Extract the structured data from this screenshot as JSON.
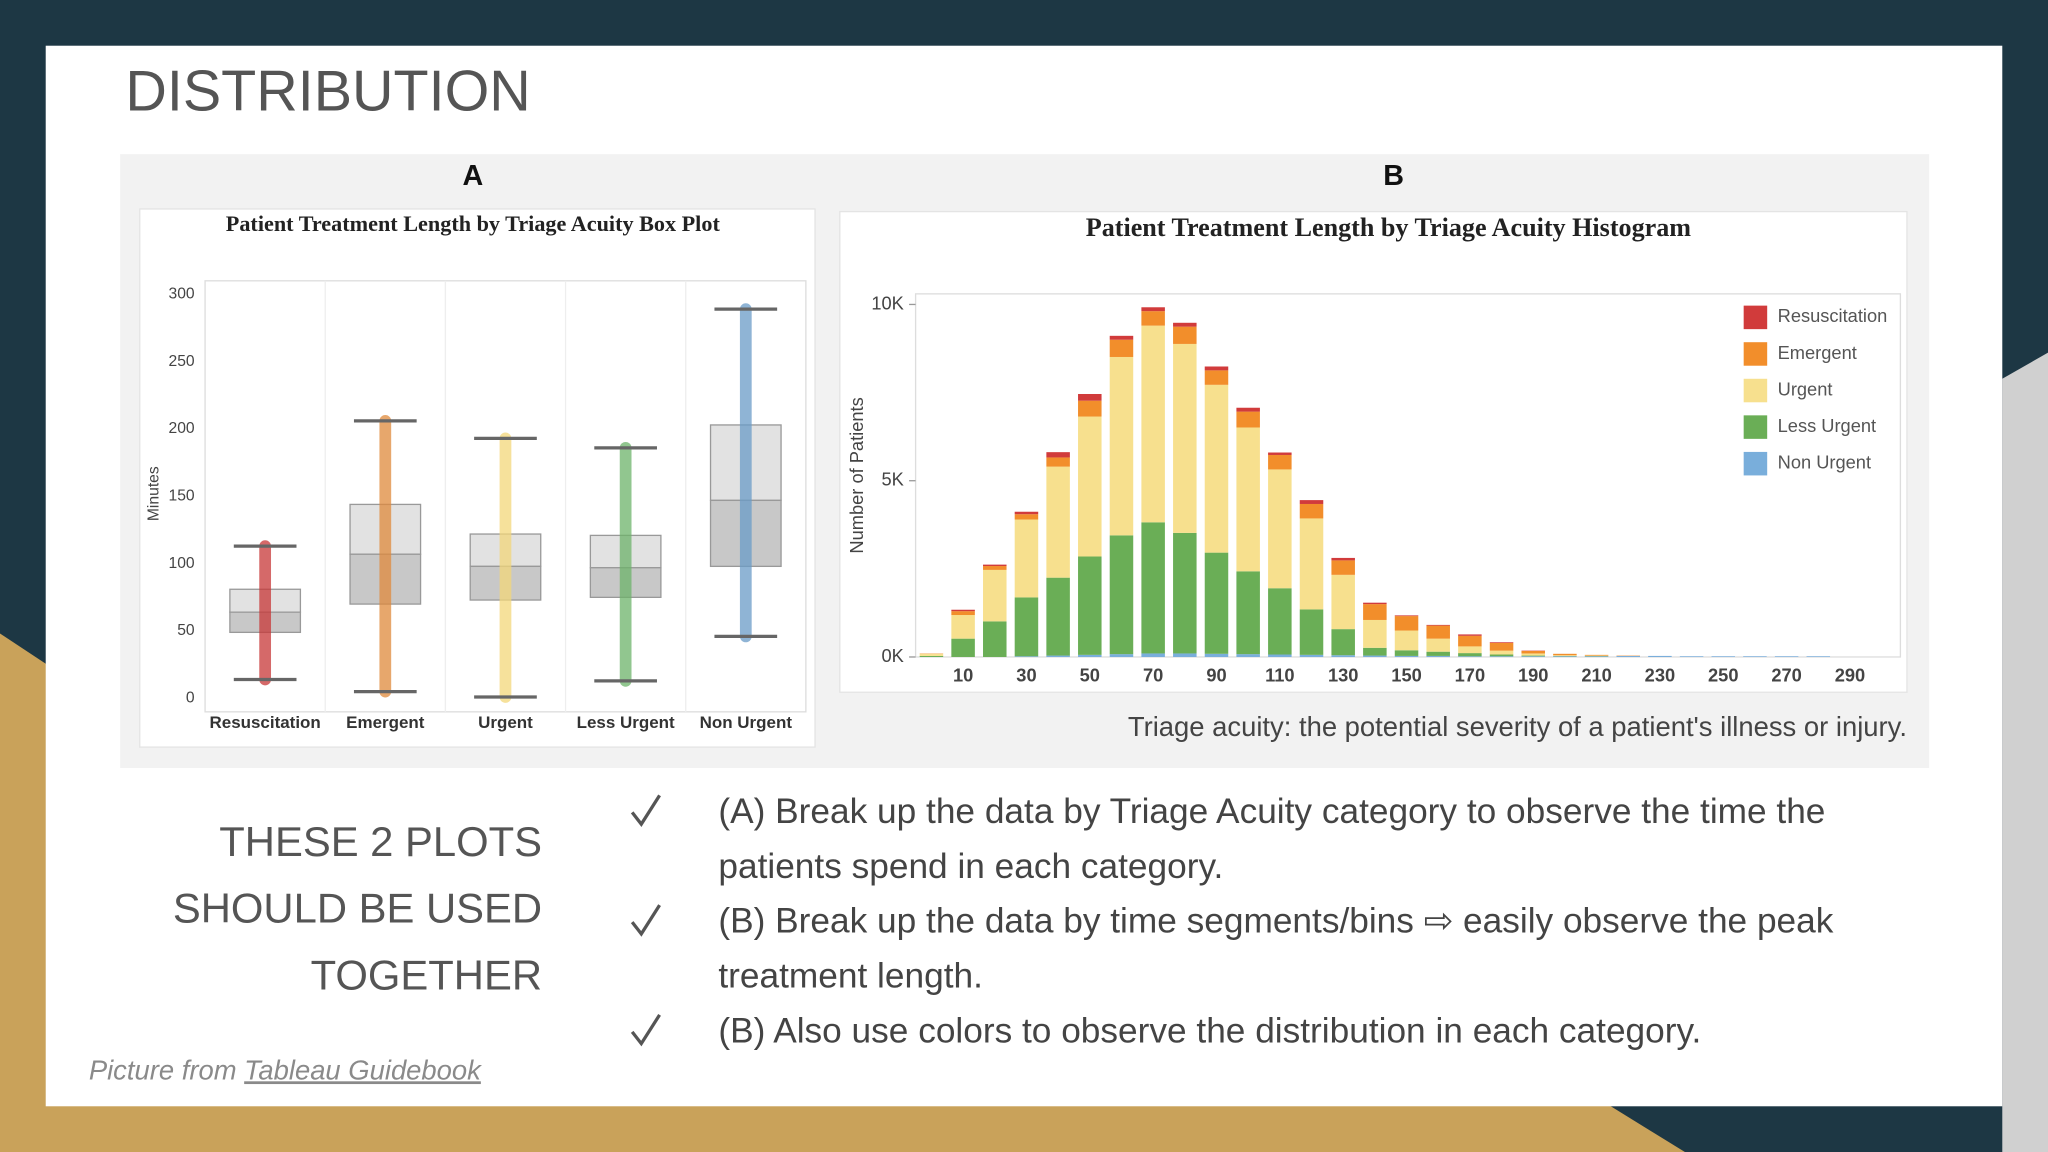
{
  "slide": {
    "title": "DISTRIBUTION",
    "panel_labels": [
      "A",
      "B"
    ],
    "caption": "Triage acuity: the potential severity of a patient's illness or injury.",
    "side_text": [
      "THESE 2 PLOTS",
      "SHOULD BE USED",
      "TOGETHER"
    ],
    "bullets": [
      [
        "(A) Break up the data by Triage Acuity category to observe the time the",
        "patients spend in each category."
      ],
      [
        "(B) Break up the data by time segments/bins ⇨  easily observe the peak",
        "treatment length."
      ],
      [
        "(B) Also use colors to observe the distribution in each category."
      ]
    ],
    "credit": {
      "prefix": "Picture from ",
      "link": "Tableau Guidebook"
    }
  },
  "chart_data": [
    {
      "type": "box",
      "title": "Patient Treatment Length by Triage Acuity Box Plot",
      "y_label": "Minutes",
      "categories": [
        "Resuscitation",
        "Emergent",
        "Urgent",
        "Less Urgent",
        "Non Urgent"
      ],
      "colors": [
        "#c83737",
        "#e08a3c",
        "#f3d77a",
        "#6db36a",
        "#6a9cc8"
      ],
      "min": [
        14,
        5,
        1,
        13,
        46
      ],
      "q1": [
        49,
        70,
        73,
        75,
        98
      ],
      "median": [
        64,
        107,
        98,
        97,
        147
      ],
      "q3": [
        81,
        144,
        122,
        121,
        203
      ],
      "max": [
        113,
        206,
        193,
        186,
        289
      ],
      "ylim": [
        -10,
        310
      ],
      "yticks": [
        0,
        50,
        100,
        150,
        200,
        250,
        300
      ]
    },
    {
      "type": "bar",
      "stacked": true,
      "title": "Patient Treatment Length by Triage Acuity Histogram",
      "y_label": "Number of Patients",
      "categories": [
        null,
        "10",
        null,
        "30",
        null,
        "50",
        null,
        "70",
        null,
        "90",
        null,
        "110",
        null,
        "130",
        null,
        "150",
        null,
        "170",
        null,
        "190",
        null,
        "210",
        null,
        "230",
        null,
        "250",
        null,
        "270",
        null,
        "290"
      ],
      "series": [
        {
          "name": "Resuscitation",
          "color": "#d13b3b",
          "values": [
            0,
            40,
            40,
            70,
            150,
            190,
            110,
            110,
            110,
            110,
            110,
            70,
            110,
            70,
            40,
            20,
            20,
            40,
            20,
            10,
            0,
            0,
            0,
            0,
            0,
            0,
            0,
            0,
            0,
            0
          ]
        },
        {
          "name": "Emergent",
          "color": "#f28e2b",
          "values": [
            10,
            110,
            110,
            150,
            260,
            450,
            490,
            410,
            490,
            410,
            450,
            410,
            410,
            410,
            450,
            410,
            370,
            300,
            220,
            70,
            40,
            20,
            10,
            0,
            0,
            0,
            0,
            0,
            0,
            0
          ]
        },
        {
          "name": "Urgent",
          "color": "#f7e08e",
          "values": [
            60,
            670,
            1460,
            2210,
            3150,
            3970,
            5060,
            5580,
            5360,
            4760,
            4080,
            3370,
            2580,
            1540,
            790,
            560,
            370,
            190,
            110,
            60,
            20,
            10,
            0,
            0,
            0,
            0,
            0,
            0,
            0,
            0
          ]
        },
        {
          "name": "Less Urgent",
          "color": "#6aae56",
          "values": [
            30,
            520,
            1010,
            1670,
            2210,
            2790,
            3370,
            3720,
            3420,
            2870,
            2350,
            1880,
            1290,
            740,
            220,
            160,
            120,
            90,
            50,
            20,
            10,
            10,
            0,
            0,
            0,
            0,
            0,
            0,
            0,
            0
          ]
        },
        {
          "name": "Non Urgent",
          "color": "#79aedb",
          "values": [
            0,
            0,
            0,
            20,
            40,
            60,
            80,
            100,
            100,
            90,
            80,
            70,
            60,
            50,
            40,
            30,
            30,
            20,
            20,
            20,
            20,
            20,
            30,
            30,
            20,
            20,
            20,
            20,
            20,
            0
          ]
        }
      ],
      "ylim": [
        0,
        10300
      ],
      "yticks": [
        {
          "value": 0,
          "label": "0K"
        },
        {
          "value": 5000,
          "label": "5K"
        },
        {
          "value": 10000,
          "label": "10K"
        }
      ],
      "legend": "top-right"
    }
  ]
}
